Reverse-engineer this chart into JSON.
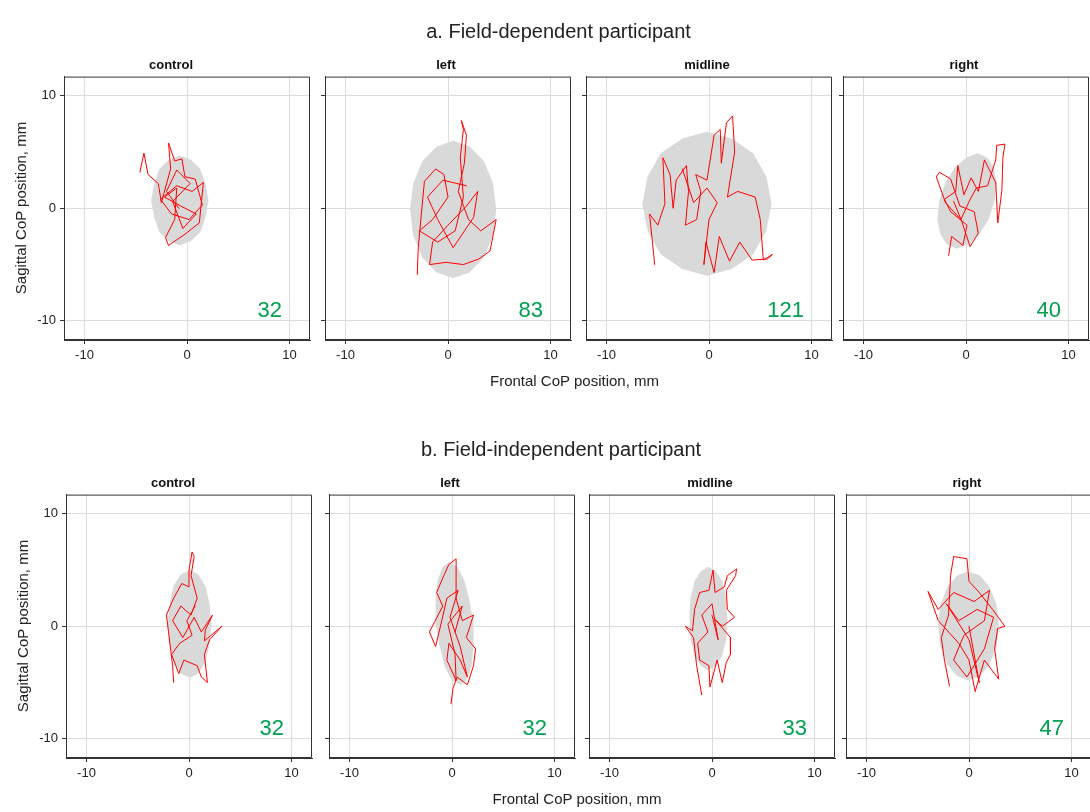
{
  "chart_data": [
    {
      "type": "line",
      "title": "control",
      "ylabel": "Sagittal CoP position, mm",
      "xlim": [
        -12,
        12
      ],
      "ylim": [
        -11.7,
        11.7
      ],
      "xticks": [
        -10,
        0,
        10
      ],
      "yticks": [
        -10,
        0,
        10
      ],
      "grid": true,
      "marker": "none",
      "line_style": "solid",
      "annotations": [
        "32"
      ],
      "series": [
        {
          "type": "area",
          "color": "#d9d9d9",
          "x": [
            2.1,
            1.8,
            1.3,
            0.4,
            -0.7,
            -1.8,
            -2.7,
            -3.2,
            -3.5,
            -3.2,
            -2.7,
            -1.8,
            -0.7,
            0.4,
            1.3,
            1.8,
            2.1
          ],
          "values": [
            0.7,
            2.2,
            3.5,
            4.3,
            4.7,
            4.3,
            3.5,
            2.2,
            0.7,
            -0.8,
            -2.1,
            -2.9,
            -3.3,
            -2.9,
            -2.1,
            -0.8,
            0.7
          ]
        },
        {
          "type": "line",
          "color": "#ff0000",
          "x": [
            -4.6,
            -4.2,
            -3.8,
            -2.8,
            -2.5,
            -1.6,
            -1.8,
            -1.2,
            -0.5,
            -0.2,
            0.8,
            1.5,
            0.2,
            -1.5,
            -2.6,
            -1.0,
            0.5,
            1.6,
            1.2,
            -0.2,
            -1.8,
            -2.1,
            -1.2,
            -1.0,
            -2.2,
            -0.6,
            0.9,
            -0.4,
            -1.4,
            0.3,
            -1.0,
            -2.0,
            -0.8
          ],
          "values": [
            3.2,
            4.9,
            3.0,
            2.2,
            0.5,
            3.5,
            5.8,
            4.2,
            4.4,
            2.8,
            2.6,
            0.3,
            -1.0,
            -0.5,
            0.8,
            2.0,
            1.5,
            2.3,
            -1.3,
            -2.3,
            -3.3,
            -2.6,
            -1.0,
            1.8,
            1.0,
            0.2,
            -0.5,
            -1.8,
            0.6,
            2.2,
            3.4,
            1.5,
            0.0
          ]
        }
      ]
    },
    {
      "type": "line",
      "subtitle": "a. Field-dependent participant",
      "title": "left",
      "xlabel": "Frontal CoP position, mm",
      "xlim": [
        -12,
        12
      ],
      "ylim": [
        -11.7,
        11.7
      ],
      "xticks": [
        -10,
        0,
        10
      ],
      "yticks": [
        -10,
        0,
        10
      ],
      "grid": true,
      "marker": "none",
      "line_style": "solid",
      "tick_labels": "x",
      "annotations": [
        "83"
      ],
      "series": [
        {
          "type": "area",
          "color": "#d9d9d9",
          "x": [
            4.7,
            4.4,
            3.5,
            2.1,
            0.5,
            -1.1,
            -2.5,
            -3.4,
            -3.7,
            -3.4,
            -2.5,
            -1.1,
            0.5,
            2.1,
            3.5,
            4.4,
            4.7
          ],
          "values": [
            -0.1,
            2.2,
            4.2,
            5.5,
            6.0,
            5.5,
            4.2,
            2.2,
            -0.1,
            -2.4,
            -4.4,
            -5.7,
            -6.2,
            -5.7,
            -4.4,
            -2.4,
            -0.1
          ]
        },
        {
          "type": "line",
          "color": "#ff0000",
          "x": [
            -3.0,
            -2.9,
            -2.6,
            -2.3,
            -1.2,
            -0.4,
            0.0,
            -1.5,
            -2.8,
            -1.0,
            0.7,
            1.5,
            1.2,
            1.5,
            1.3,
            1.8,
            1.6,
            1.0,
            2.0,
            3.2,
            4.7,
            4.1,
            3.0,
            1.5,
            -0.2,
            -1.8,
            -1.5,
            0.0,
            1.8,
            2.9,
            2.5,
            0.5,
            -1.0,
            -2.0,
            -0.5,
            1.8
          ],
          "values": [
            -5.9,
            -3.5,
            -0.5,
            2.4,
            3.5,
            3.0,
            1.0,
            -1.0,
            -2.0,
            -3.0,
            -2.0,
            1.0,
            4.5,
            7.0,
            7.8,
            6.5,
            4.0,
            1.5,
            -1.0,
            -2.0,
            -1.0,
            -3.8,
            -4.5,
            -5.0,
            -4.8,
            -5.0,
            -3.0,
            -1.5,
            0.2,
            1.5,
            -0.8,
            -3.5,
            -1.0,
            1.0,
            2.5,
            2.0
          ]
        }
      ]
    },
    {
      "type": "line",
      "title": "midline",
      "xlim": [
        -12,
        12
      ],
      "ylim": [
        -11.7,
        11.7
      ],
      "xticks": [
        -10,
        0,
        10
      ],
      "yticks": [
        -10,
        0,
        10
      ],
      "grid": true,
      "marker": "none",
      "line_style": "solid",
      "tick_labels": "x",
      "annotations": [
        "121"
      ],
      "series": [
        {
          "type": "area",
          "color": "#d9d9d9",
          "x": [
            6.1,
            5.6,
            4.3,
            2.2,
            -0.2,
            -2.6,
            -4.7,
            -6.0,
            -6.5,
            -6.0,
            -4.7,
            -2.6,
            -0.2,
            2.2,
            4.3,
            5.6,
            6.1
          ],
          "values": [
            0.4,
            2.8,
            4.9,
            6.2,
            6.8,
            6.2,
            4.9,
            2.8,
            0.4,
            -2.0,
            -4.1,
            -5.4,
            -6.0,
            -5.4,
            -4.1,
            -2.0,
            0.4
          ]
        },
        {
          "type": "line",
          "color": "#ff0000",
          "x": [
            -5.3,
            -5.8,
            -5.0,
            -4.3,
            -4.5,
            -3.8,
            -3.5,
            -3.2,
            -2.2,
            -2.0,
            -2.3,
            -1.2,
            -0.8,
            -1.3,
            -0.2,
            0.5,
            1.1,
            1.2,
            1.7,
            2.3,
            2.5,
            1.8,
            2.8,
            4.5,
            5.0,
            5.3,
            6.2,
            5.7,
            4.2,
            3.0,
            2.0,
            1.0,
            0.5,
            -0.3,
            -0.5,
            0.0,
            0.8,
            -0.2,
            -1.5,
            -2.6
          ],
          "values": [
            -5.0,
            -0.5,
            -1.5,
            0.4,
            4.5,
            3.0,
            0.0,
            2.5,
            3.8,
            1.5,
            -1.5,
            -1.0,
            1.5,
            3.0,
            2.5,
            6.5,
            7.0,
            4.0,
            7.6,
            8.2,
            5.0,
            1.0,
            1.5,
            1.0,
            -1.0,
            -4.6,
            -4.1,
            -4.5,
            -4.6,
            -3.0,
            -4.7,
            -2.5,
            -5.7,
            -3.0,
            -5.0,
            -1.0,
            0.5,
            1.8,
            0.5,
            3.5
          ]
        }
      ]
    },
    {
      "type": "line",
      "title": "right",
      "xlim": [
        -12,
        12
      ],
      "ylim": [
        -11.7,
        11.7
      ],
      "xticks": [
        -10,
        0,
        10
      ],
      "yticks": [
        -10,
        0,
        10
      ],
      "grid": true,
      "marker": "none",
      "line_style": "solid",
      "tick_labels": "x",
      "annotations": [
        "40"
      ],
      "series": [
        {
          "type": "area",
          "color": "#d9d9d9",
          "x": [
            2.8,
            3.0,
            2.7,
            2.1,
            1.1,
            0.0,
            -1.1,
            -2.0,
            -2.6,
            -2.8,
            -2.5,
            -1.9,
            -0.9,
            0.2,
            1.3,
            2.2,
            2.8
          ],
          "values": [
            0.7,
            2.3,
            3.6,
            4.5,
            4.9,
            4.5,
            3.6,
            2.3,
            0.7,
            -1.0,
            -2.3,
            -3.2,
            -3.6,
            -3.2,
            -2.3,
            -1.0,
            0.7
          ]
        },
        {
          "type": "line",
          "color": "#ff0000",
          "x": [
            -1.7,
            -1.4,
            -0.3,
            0.1,
            -1.5,
            -2.1,
            -1.0,
            -0.8,
            -0.2,
            0.5,
            1.2,
            1.8,
            2.9,
            3.1,
            3.5,
            3.6,
            3.8,
            3.0,
            2.9,
            2.1,
            1.0,
            0.3,
            -0.5,
            -2.0,
            -2.9,
            -2.6,
            -1.5,
            -0.6,
            0.8,
            1.2,
            0.4,
            -0.4,
            -1.2
          ],
          "values": [
            -4.2,
            -2.5,
            -3.3,
            -1.5,
            -0.3,
            0.8,
            1.5,
            3.8,
            1.2,
            2.7,
            1.5,
            4.3,
            2.3,
            -1.3,
            1.6,
            4.5,
            5.7,
            5.6,
            4.3,
            2.0,
            1.8,
            0.6,
            -1.0,
            0.5,
            2.8,
            3.2,
            2.6,
            0.2,
            -0.3,
            -2.2,
            -3.4,
            -1.2,
            0.6
          ]
        }
      ]
    },
    {
      "type": "line",
      "title": "control",
      "ylabel": "Sagittal CoP position, mm",
      "xlim": [
        -12,
        12
      ],
      "ylim": [
        -11.7,
        11.7
      ],
      "xticks": [
        -10,
        0,
        10
      ],
      "yticks": [
        -10,
        0,
        10
      ],
      "grid": true,
      "marker": "none",
      "line_style": "solid",
      "annotations": [
        "32"
      ],
      "series": [
        {
          "type": "area",
          "color": "#d9d9d9",
          "x": [
            2.2,
            2.0,
            1.6,
            0.9,
            0.1,
            -0.8,
            -1.5,
            -1.9,
            -2.1,
            -1.9,
            -1.5,
            -0.8,
            0.1,
            0.9,
            1.6,
            2.0,
            2.2
          ],
          "values": [
            0.2,
            2.0,
            3.6,
            4.6,
            5.0,
            4.6,
            3.6,
            2.0,
            0.2,
            -1.6,
            -3.2,
            -4.2,
            -4.6,
            -4.2,
            -3.2,
            -1.6,
            0.2
          ]
        },
        {
          "type": "line",
          "color": "#ff0000",
          "x": [
            -1.5,
            -1.6,
            -2.0,
            -2.2,
            -1.5,
            -0.7,
            0.0,
            0.0,
            0.3,
            0.5,
            0.2,
            0.8,
            0.2,
            -0.8,
            -1.6,
            -0.6,
            0.5,
            1.2,
            2.3,
            1.6,
            1.5,
            3.2,
            2.0,
            1.5,
            1.8,
            1.2,
            0.8,
            -0.5,
            -1.0,
            -1.7,
            -0.9,
            0.3,
            -0.2,
            0.6
          ],
          "values": [
            -5.0,
            -3.5,
            -0.5,
            1.0,
            2.5,
            3.8,
            3.5,
            5.0,
            6.6,
            6.2,
            4.5,
            2.5,
            1.0,
            1.8,
            0.5,
            -1.0,
            0.8,
            -0.5,
            1.0,
            -0.3,
            -1.3,
            0.0,
            -1.2,
            -2.5,
            -5.0,
            -4.5,
            -3.5,
            -3.0,
            -4.2,
            -2.5,
            -1.5,
            -0.8,
            0.5,
            1.8
          ]
        }
      ]
    },
    {
      "type": "line",
      "subtitle": "b. Field-independent participant",
      "title": "left",
      "xlabel": "Frontal CoP position, mm",
      "xlim": [
        -12,
        12
      ],
      "ylim": [
        -11.7,
        11.7
      ],
      "xticks": [
        -10,
        0,
        10
      ],
      "yticks": [
        -10,
        0,
        10
      ],
      "grid": true,
      "marker": "none",
      "line_style": "solid",
      "tick_labels": "x",
      "annotations": [
        "32"
      ],
      "series": [
        {
          "type": "area",
          "color": "#d9d9d9",
          "x": [
            2.1,
            1.7,
            1.2,
            0.5,
            -0.3,
            -0.9,
            -1.4,
            -1.6,
            -1.6,
            -1.2,
            -0.7,
            0.0,
            0.8,
            1.4,
            1.9,
            2.1,
            2.1
          ],
          "values": [
            0.3,
            2.3,
            4.1,
            5.3,
            5.7,
            5.3,
            4.1,
            2.3,
            0.3,
            -1.8,
            -3.6,
            -4.8,
            -5.2,
            -4.8,
            -3.6,
            -1.8,
            0.3
          ]
        },
        {
          "type": "line",
          "color": "#ff0000",
          "x": [
            -0.1,
            0.1,
            0.5,
            1.5,
            2.1,
            2.3,
            1.4,
            2.1,
            1.0,
            0.4,
            0.4,
            -0.3,
            -0.8,
            -1.5,
            -0.9,
            -2.2,
            -1.6,
            -1.0,
            -0.5,
            0.6,
            -0.2,
            0.8,
            1.5,
            0.8,
            -0.3,
            -0.5,
            0.4,
            0.3,
            -0.4,
            1.0,
            0.3
          ],
          "values": [
            -6.9,
            -5.5,
            -4.5,
            -5.2,
            -3.5,
            -2.0,
            -1.0,
            1.0,
            0.5,
            2.5,
            6.0,
            5.5,
            4.5,
            3.0,
            1.8,
            -0.5,
            -1.8,
            0.5,
            2.5,
            3.2,
            0.8,
            -1.8,
            -4.5,
            -3.0,
            -1.5,
            -3.0,
            -4.8,
            -2.5,
            0.2,
            1.8,
            -0.5
          ]
        }
      ]
    },
    {
      "type": "line",
      "title": "midline",
      "xlim": [
        -12,
        12
      ],
      "ylim": [
        -11.7,
        11.7
      ],
      "xticks": [
        -10,
        0,
        10
      ],
      "yticks": [
        -10,
        0,
        10
      ],
      "grid": true,
      "marker": "none",
      "line_style": "solid",
      "tick_labels": "x",
      "annotations": [
        "33"
      ],
      "series": [
        {
          "type": "area",
          "color": "#d9d9d9",
          "x": [
            1.5,
            1.4,
            1.0,
            0.4,
            -0.4,
            -1.1,
            -1.7,
            -2.1,
            -2.2,
            -2.1,
            -1.7,
            -1.1,
            -0.4,
            0.4,
            1.0,
            1.4,
            1.5
          ],
          "values": [
            0.7,
            2.5,
            4.0,
            4.9,
            5.3,
            4.9,
            4.0,
            2.5,
            0.7,
            -1.1,
            -2.6,
            -3.5,
            -3.9,
            -3.5,
            -2.6,
            -1.1,
            0.7
          ]
        },
        {
          "type": "line",
          "color": "#ff0000",
          "x": [
            -1.0,
            -1.5,
            -1.8,
            -2.6,
            -1.9,
            -1.7,
            -1.2,
            -0.3,
            0.1,
            0.3,
            1.2,
            1.5,
            2.4,
            2.3,
            1.4,
            1.5,
            2.2,
            1.0,
            0.3,
            1.8,
            1.8,
            1.4,
            1.0,
            0.5,
            -0.2,
            -0.3,
            -1.2,
            -1.4,
            -0.4,
            -1.0,
            0.0,
            0.6,
            0.0
          ],
          "values": [
            -6.1,
            -3.5,
            -1.0,
            0.0,
            -0.4,
            1.5,
            3.0,
            3.2,
            5.0,
            3.0,
            3.5,
            4.5,
            5.1,
            4.5,
            3.2,
            1.5,
            0.8,
            0.0,
            0.6,
            -1.0,
            -2.5,
            -3.2,
            -5.0,
            -3.0,
            -5.4,
            -3.5,
            -3.0,
            -1.5,
            -0.5,
            1.0,
            2.0,
            -1.2,
            1.0
          ]
        }
      ]
    },
    {
      "type": "line",
      "title": "right",
      "xlim": [
        -12,
        12
      ],
      "ylim": [
        -11.7,
        11.7
      ],
      "xticks": [
        -10,
        0,
        10
      ],
      "yticks": [
        -10,
        0,
        10
      ],
      "grid": true,
      "marker": "none",
      "line_style": "solid",
      "tick_labels": "x",
      "annotations": [
        "47"
      ],
      "series": [
        {
          "type": "area",
          "color": "#d9d9d9",
          "x": [
            2.9,
            2.7,
            2.0,
            1.1,
            -0.1,
            -1.2,
            -2.1,
            -2.8,
            -3.0,
            -2.8,
            -2.1,
            -1.2,
            -0.1,
            1.1,
            2.0,
            2.7,
            2.9
          ],
          "values": [
            0.1,
            1.9,
            3.5,
            4.5,
            4.9,
            4.5,
            3.5,
            1.9,
            0.1,
            -1.8,
            -3.4,
            -4.4,
            -4.8,
            -4.4,
            -3.4,
            -1.8,
            0.1
          ]
        },
        {
          "type": "line",
          "color": "#ff0000",
          "x": [
            -1.9,
            -2.4,
            -2.7,
            -2.0,
            -1.8,
            -1.5,
            -0.2,
            0.0,
            1.0,
            2.3,
            3.5,
            2.8,
            2.5,
            2.9,
            1.5,
            0.6,
            0.0,
            -1.0,
            -3.0,
            -4.0,
            -3.0,
            -1.5,
            0.5,
            2.0,
            1.5,
            -0.5,
            -1.5,
            -0.2,
            1.5,
            2.4,
            0.8,
            -1.0,
            -2.2,
            0.0,
            1.0,
            0.0
          ],
          "values": [
            -5.3,
            -3.0,
            -1.0,
            1.0,
            4.5,
            6.2,
            6.0,
            4.0,
            3.0,
            1.5,
            0.0,
            -0.2,
            -2.0,
            -4.7,
            -3.0,
            -5.8,
            -3.0,
            -1.5,
            0.5,
            3.1,
            1.5,
            3.0,
            2.2,
            3.2,
            0.5,
            -0.8,
            -3.0,
            -4.5,
            -2.0,
            0.8,
            1.5,
            0.5,
            2.0,
            -1.2,
            -5.0,
            0.0
          ]
        }
      ]
    }
  ]
}
